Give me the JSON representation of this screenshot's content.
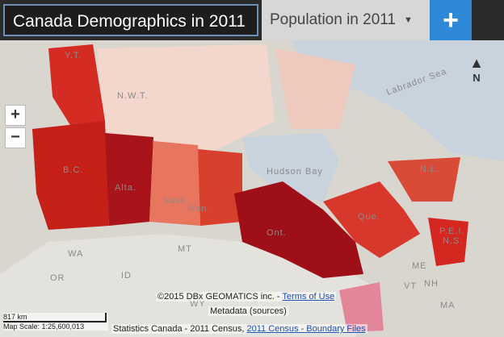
{
  "header": {
    "title": "Canada Demographics in 2011",
    "dropdown": "Population in 2011",
    "add_button": "+"
  },
  "map_controls": {
    "zoom_in": "+",
    "zoom_out": "−",
    "north": "N"
  },
  "map_labels": [
    "Y.T.",
    "N.W.T.",
    "Labrador Sea",
    "B.C.",
    "Alta.",
    "Sask.",
    "Man.",
    "Hudson Bay",
    "Ont.",
    "Que.",
    "N.L.",
    "P.E.I.",
    "N.S.",
    "WA",
    "ID",
    "OR",
    "MT",
    "WY",
    "ME",
    "NH",
    "VT",
    "MA"
  ],
  "footer": {
    "copyright": "©2015 DBx GEOMATICS inc. - ",
    "terms": "Terms of Use",
    "metadata": "Metadata (sources)",
    "source": "Statistics Canada - 2011 Census, ",
    "boundary": "2011 Census - Boundary Files",
    "scale_distance": "817 km",
    "scale_ratio": "Map Scale: 1:25,600,013"
  }
}
